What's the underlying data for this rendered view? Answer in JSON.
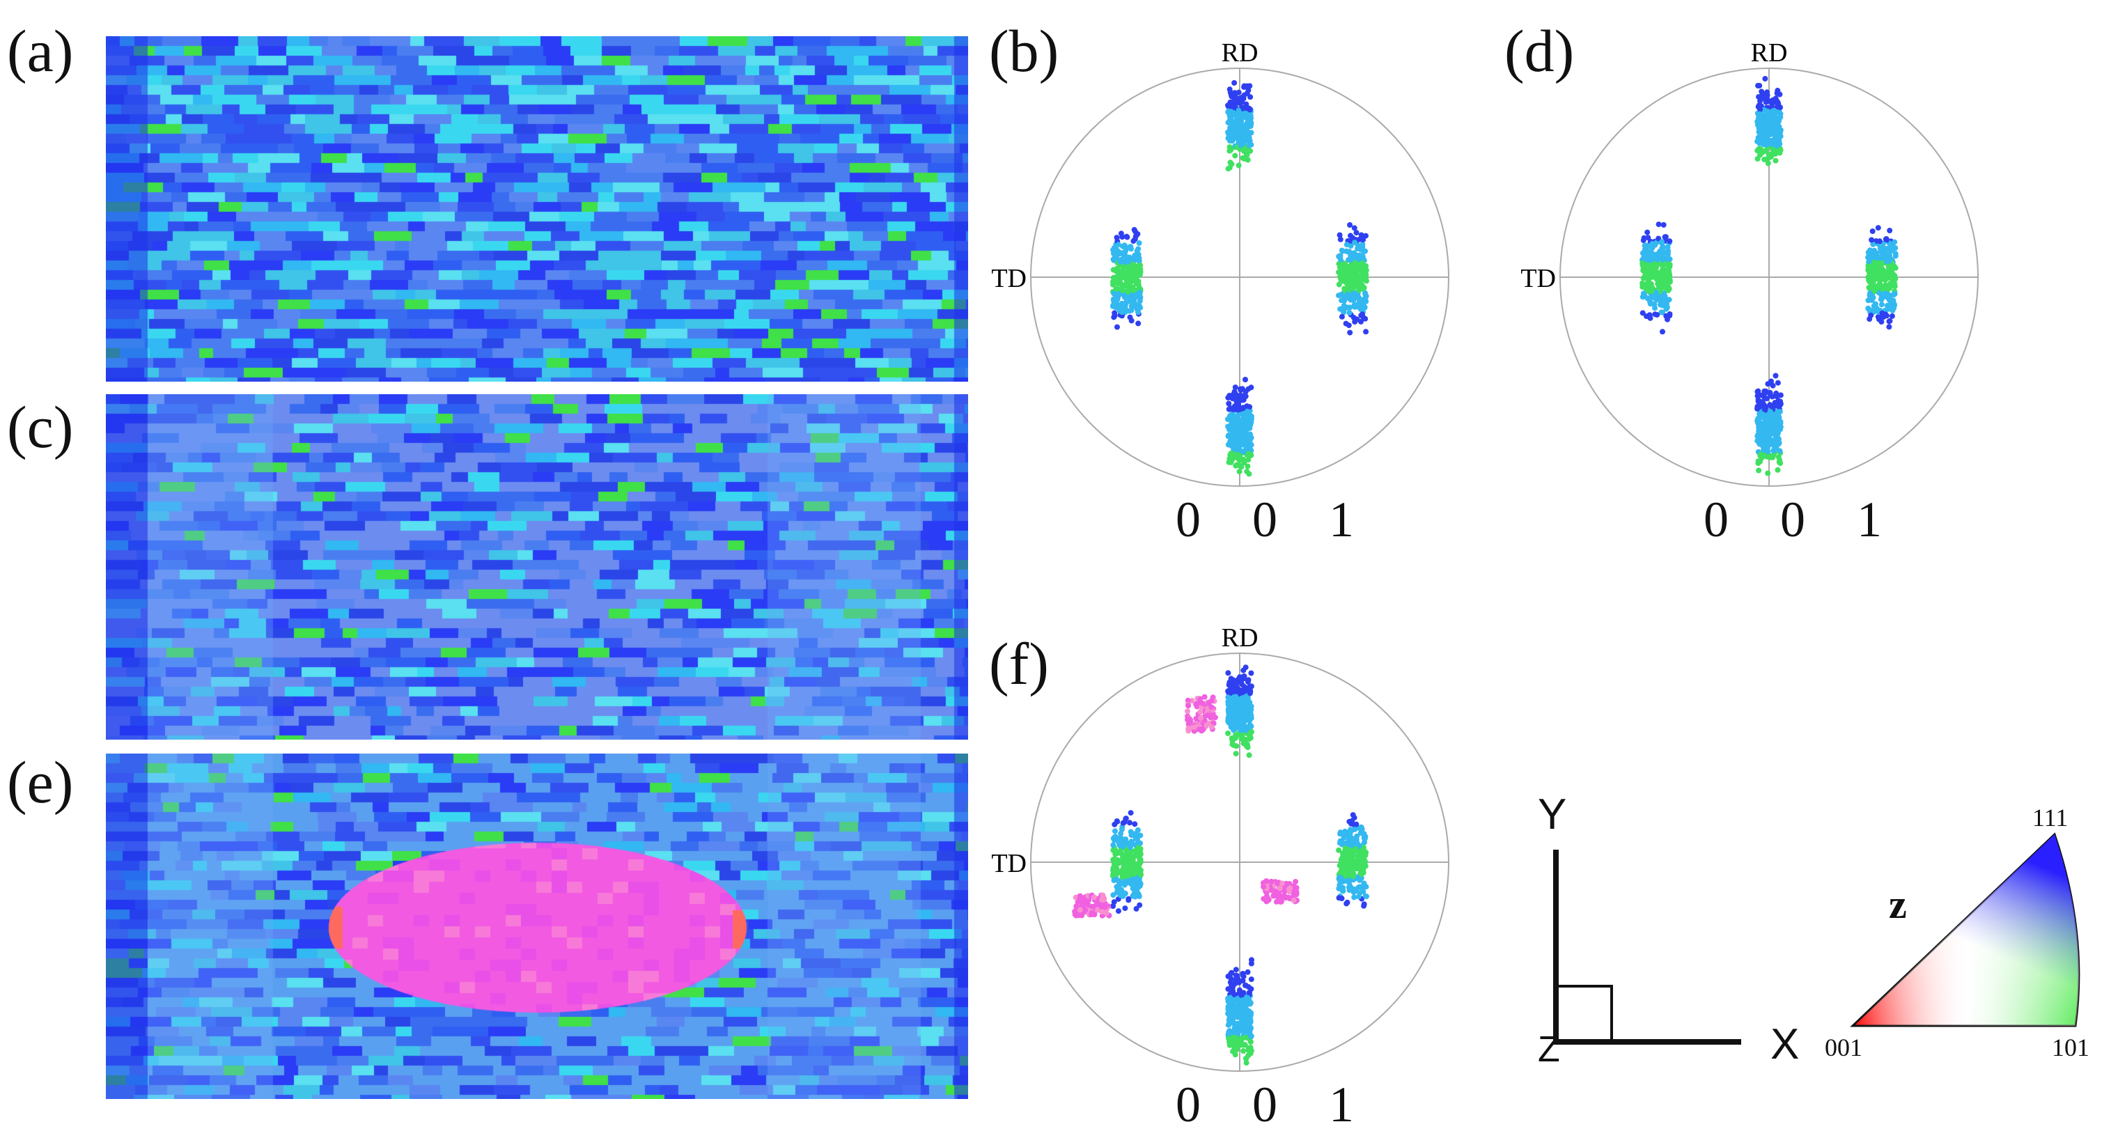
{
  "figure": {
    "panels": {
      "a": "(a)",
      "b": "(b)",
      "c": "(c)",
      "d": "(d)",
      "e": "(e)",
      "f": "(f)"
    },
    "pole_figures": [
      {
        "id": "b",
        "rd_label": "RD",
        "td_label": "TD",
        "caption": "0 0 1",
        "variant": "rolled"
      },
      {
        "id": "d",
        "rd_label": "RD",
        "td_label": "TD",
        "caption": "0 0 1",
        "variant": "annealed"
      },
      {
        "id": "f",
        "rd_label": "RD",
        "td_label": "TD",
        "caption": "0 0 1",
        "variant": "with-grain"
      }
    ],
    "orientation_maps": [
      {
        "id": "a",
        "variant": "rolled"
      },
      {
        "id": "c",
        "variant": "partial"
      },
      {
        "id": "e",
        "variant": "grain"
      }
    ],
    "axes": {
      "y_label": "Y",
      "x_label": "X",
      "z_label": "Z"
    },
    "ipf_legend": {
      "direction_label": "z",
      "corner_001": "001",
      "corner_101": "101",
      "corner_111": "111"
    },
    "colors": {
      "matrix_blue": "#2a4cf0",
      "cyan": "#2ad0f0",
      "green": "#30e040",
      "magenta": "#f050e0"
    }
  }
}
